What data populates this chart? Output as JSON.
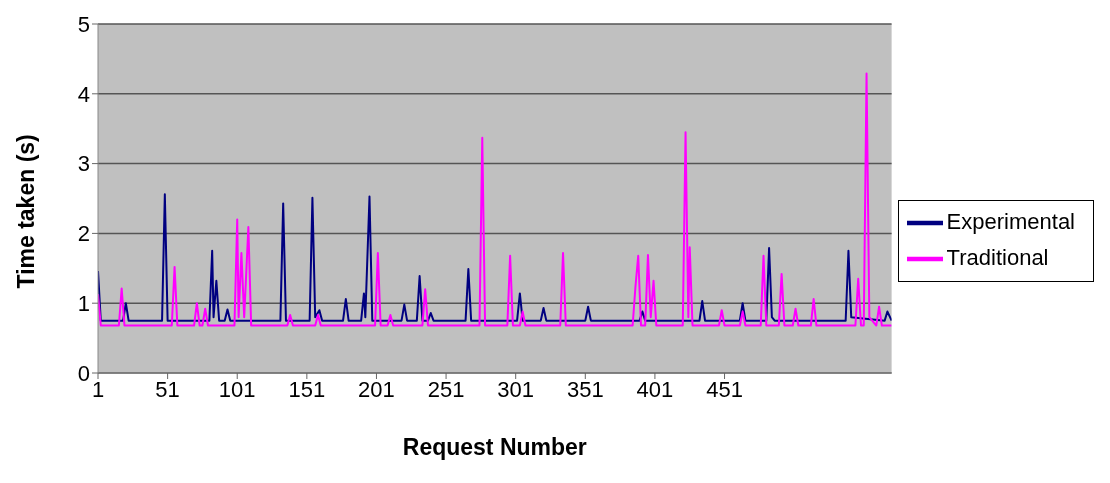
{
  "chart_data": {
    "type": "line",
    "xlabel": "Request Number",
    "ylabel": "Time taken (s)",
    "xlim": [
      1,
      571
    ],
    "xticks": [
      1,
      51,
      101,
      151,
      201,
      251,
      301,
      351,
      401,
      451
    ],
    "ylim": [
      0,
      5
    ],
    "yticks": [
      0,
      1,
      2,
      3,
      4,
      5
    ],
    "grid": "y",
    "legend": "right",
    "marker": "none",
    "line_style": "solid",
    "series": [
      {
        "name": "Experimental",
        "color": "#000080",
        "x": [
          1,
          3,
          19,
          21,
          23,
          47,
          49,
          51,
          81,
          83,
          84,
          86,
          88,
          92,
          94,
          96,
          132,
          134,
          136,
          153,
          155,
          157,
          160,
          162,
          177,
          179,
          181,
          190,
          192,
          193,
          196,
          198,
          219,
          221,
          223,
          230,
          232,
          234,
          238,
          240,
          242,
          265,
          267,
          269,
          302,
          304,
          306,
          319,
          321,
          323,
          351,
          353,
          355,
          390,
          392,
          394,
          433,
          435,
          437,
          462,
          464,
          466,
          481,
          483,
          485,
          487,
          538,
          540,
          542,
          566,
          568,
          571
        ],
        "values": [
          1.46,
          0.75,
          0.75,
          1.0,
          0.75,
          0.75,
          2.56,
          0.75,
          0.75,
          1.75,
          0.8,
          1.32,
          0.75,
          0.75,
          0.91,
          0.75,
          0.75,
          2.43,
          0.75,
          0.75,
          2.51,
          0.8,
          0.9,
          0.75,
          0.75,
          1.06,
          0.75,
          0.75,
          1.14,
          0.8,
          2.53,
          0.75,
          0.75,
          0.98,
          0.75,
          0.75,
          1.39,
          0.75,
          0.75,
          0.86,
          0.75,
          0.75,
          1.49,
          0.75,
          0.75,
          1.14,
          0.75,
          0.75,
          0.93,
          0.75,
          0.75,
          0.95,
          0.75,
          0.75,
          0.88,
          0.75,
          0.75,
          1.03,
          0.75,
          0.75,
          1.0,
          0.75,
          0.75,
          1.79,
          0.8,
          0.75,
          0.75,
          1.75,
          0.8,
          0.75,
          0.88,
          0.75
        ]
      },
      {
        "name": "Traditional",
        "color": "#ff00ff",
        "x": [
          1,
          3,
          16,
          18,
          20,
          54,
          56,
          58,
          70,
          72,
          74,
          76,
          78,
          80,
          99,
          101,
          102,
          104,
          106,
          109,
          111,
          137,
          139,
          141,
          157,
          159,
          161,
          200,
          202,
          204,
          209,
          211,
          213,
          234,
          236,
          238,
          275,
          277,
          279,
          295,
          297,
          299,
          304,
          306,
          308,
          333,
          335,
          337,
          385,
          387,
          389,
          391,
          394,
          396,
          398,
          400,
          402,
          421,
          423,
          425,
          426,
          428,
          447,
          449,
          451,
          462,
          464,
          466,
          477,
          479,
          481,
          490,
          492,
          494,
          500,
          502,
          504,
          513,
          515,
          517,
          545,
          547,
          549,
          551,
          553,
          555,
          560,
          562,
          564,
          571
        ],
        "values": [
          1.13,
          0.68,
          0.68,
          1.21,
          0.68,
          0.68,
          1.52,
          0.68,
          0.68,
          1.0,
          0.68,
          0.68,
          0.92,
          0.68,
          0.68,
          2.2,
          0.8,
          1.72,
          0.8,
          2.09,
          0.68,
          0.68,
          0.83,
          0.68,
          0.68,
          0.83,
          0.68,
          0.68,
          1.72,
          0.68,
          0.68,
          0.83,
          0.68,
          0.68,
          1.2,
          0.68,
          0.68,
          3.37,
          0.68,
          0.68,
          1.68,
          0.68,
          0.68,
          0.88,
          0.68,
          0.68,
          1.72,
          0.68,
          0.68,
          1.23,
          1.68,
          0.68,
          0.68,
          1.69,
          0.8,
          1.32,
          0.68,
          0.68,
          3.45,
          0.8,
          1.8,
          0.68,
          0.68,
          0.9,
          0.68,
          0.68,
          0.88,
          0.68,
          0.68,
          1.68,
          0.68,
          0.68,
          1.42,
          0.68,
          0.68,
          0.92,
          0.68,
          0.68,
          1.06,
          0.68,
          0.68,
          1.35,
          0.68,
          0.68,
          4.29,
          0.8,
          0.68,
          0.95,
          0.68,
          0.68
        ]
      }
    ]
  }
}
